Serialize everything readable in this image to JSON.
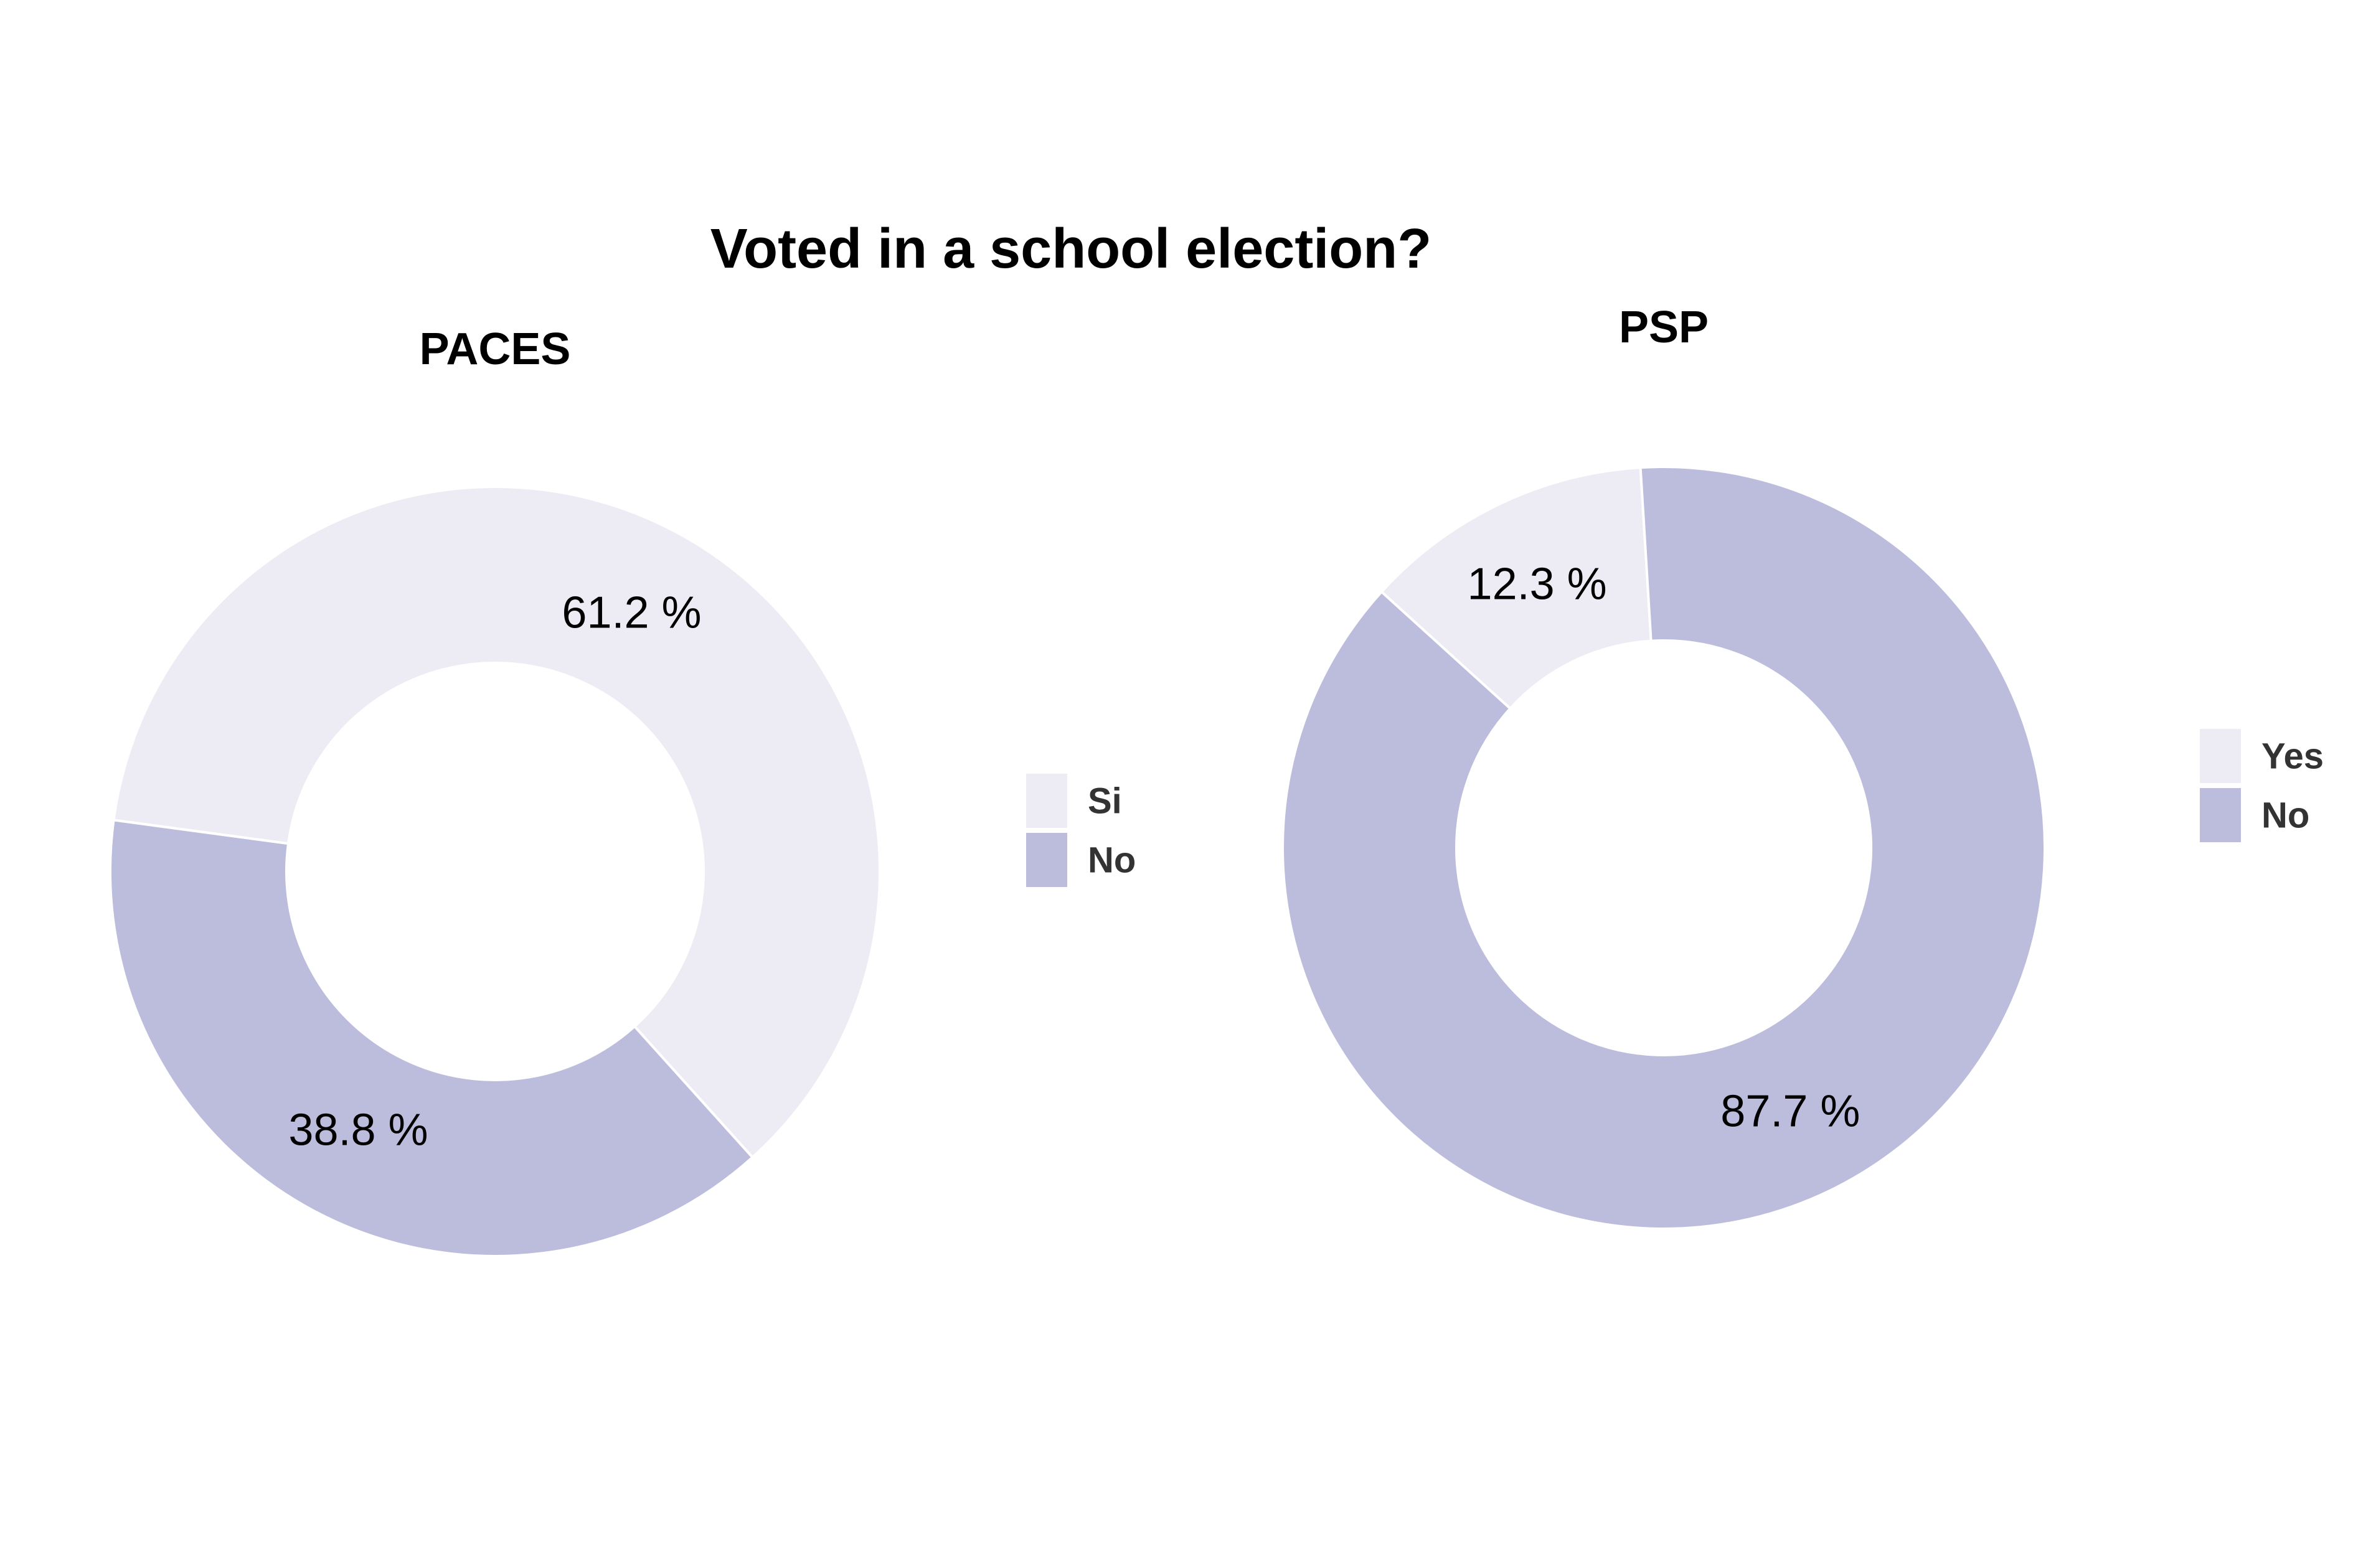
{
  "title": "Voted in a school election?",
  "colors": {
    "light": "#EDECF4",
    "dark": "#BCBCDC",
    "separator": "#FFFFFF"
  },
  "chart_data": [
    {
      "type": "pie",
      "variant": "donut",
      "title": "PACES",
      "slices": [
        {
          "label": "Si",
          "value": 61.2,
          "value_label": "61.2 %",
          "color": "#EDECF4"
        },
        {
          "label": "No",
          "value": 38.8,
          "value_label": "38.8 %",
          "color": "#BCBCDC"
        }
      ],
      "legend": {
        "position": "right",
        "entries": [
          "Si",
          "No"
        ]
      }
    },
    {
      "type": "pie",
      "variant": "donut",
      "title": "PSP",
      "slices": [
        {
          "label": "Yes",
          "value": 12.3,
          "value_label": "12.3 %",
          "color": "#EDECF4"
        },
        {
          "label": "No",
          "value": 87.7,
          "value_label": "87.7 %",
          "color": "#BCBCDC"
        }
      ],
      "legend": {
        "position": "right",
        "entries": [
          "Yes",
          "No"
        ]
      }
    }
  ]
}
